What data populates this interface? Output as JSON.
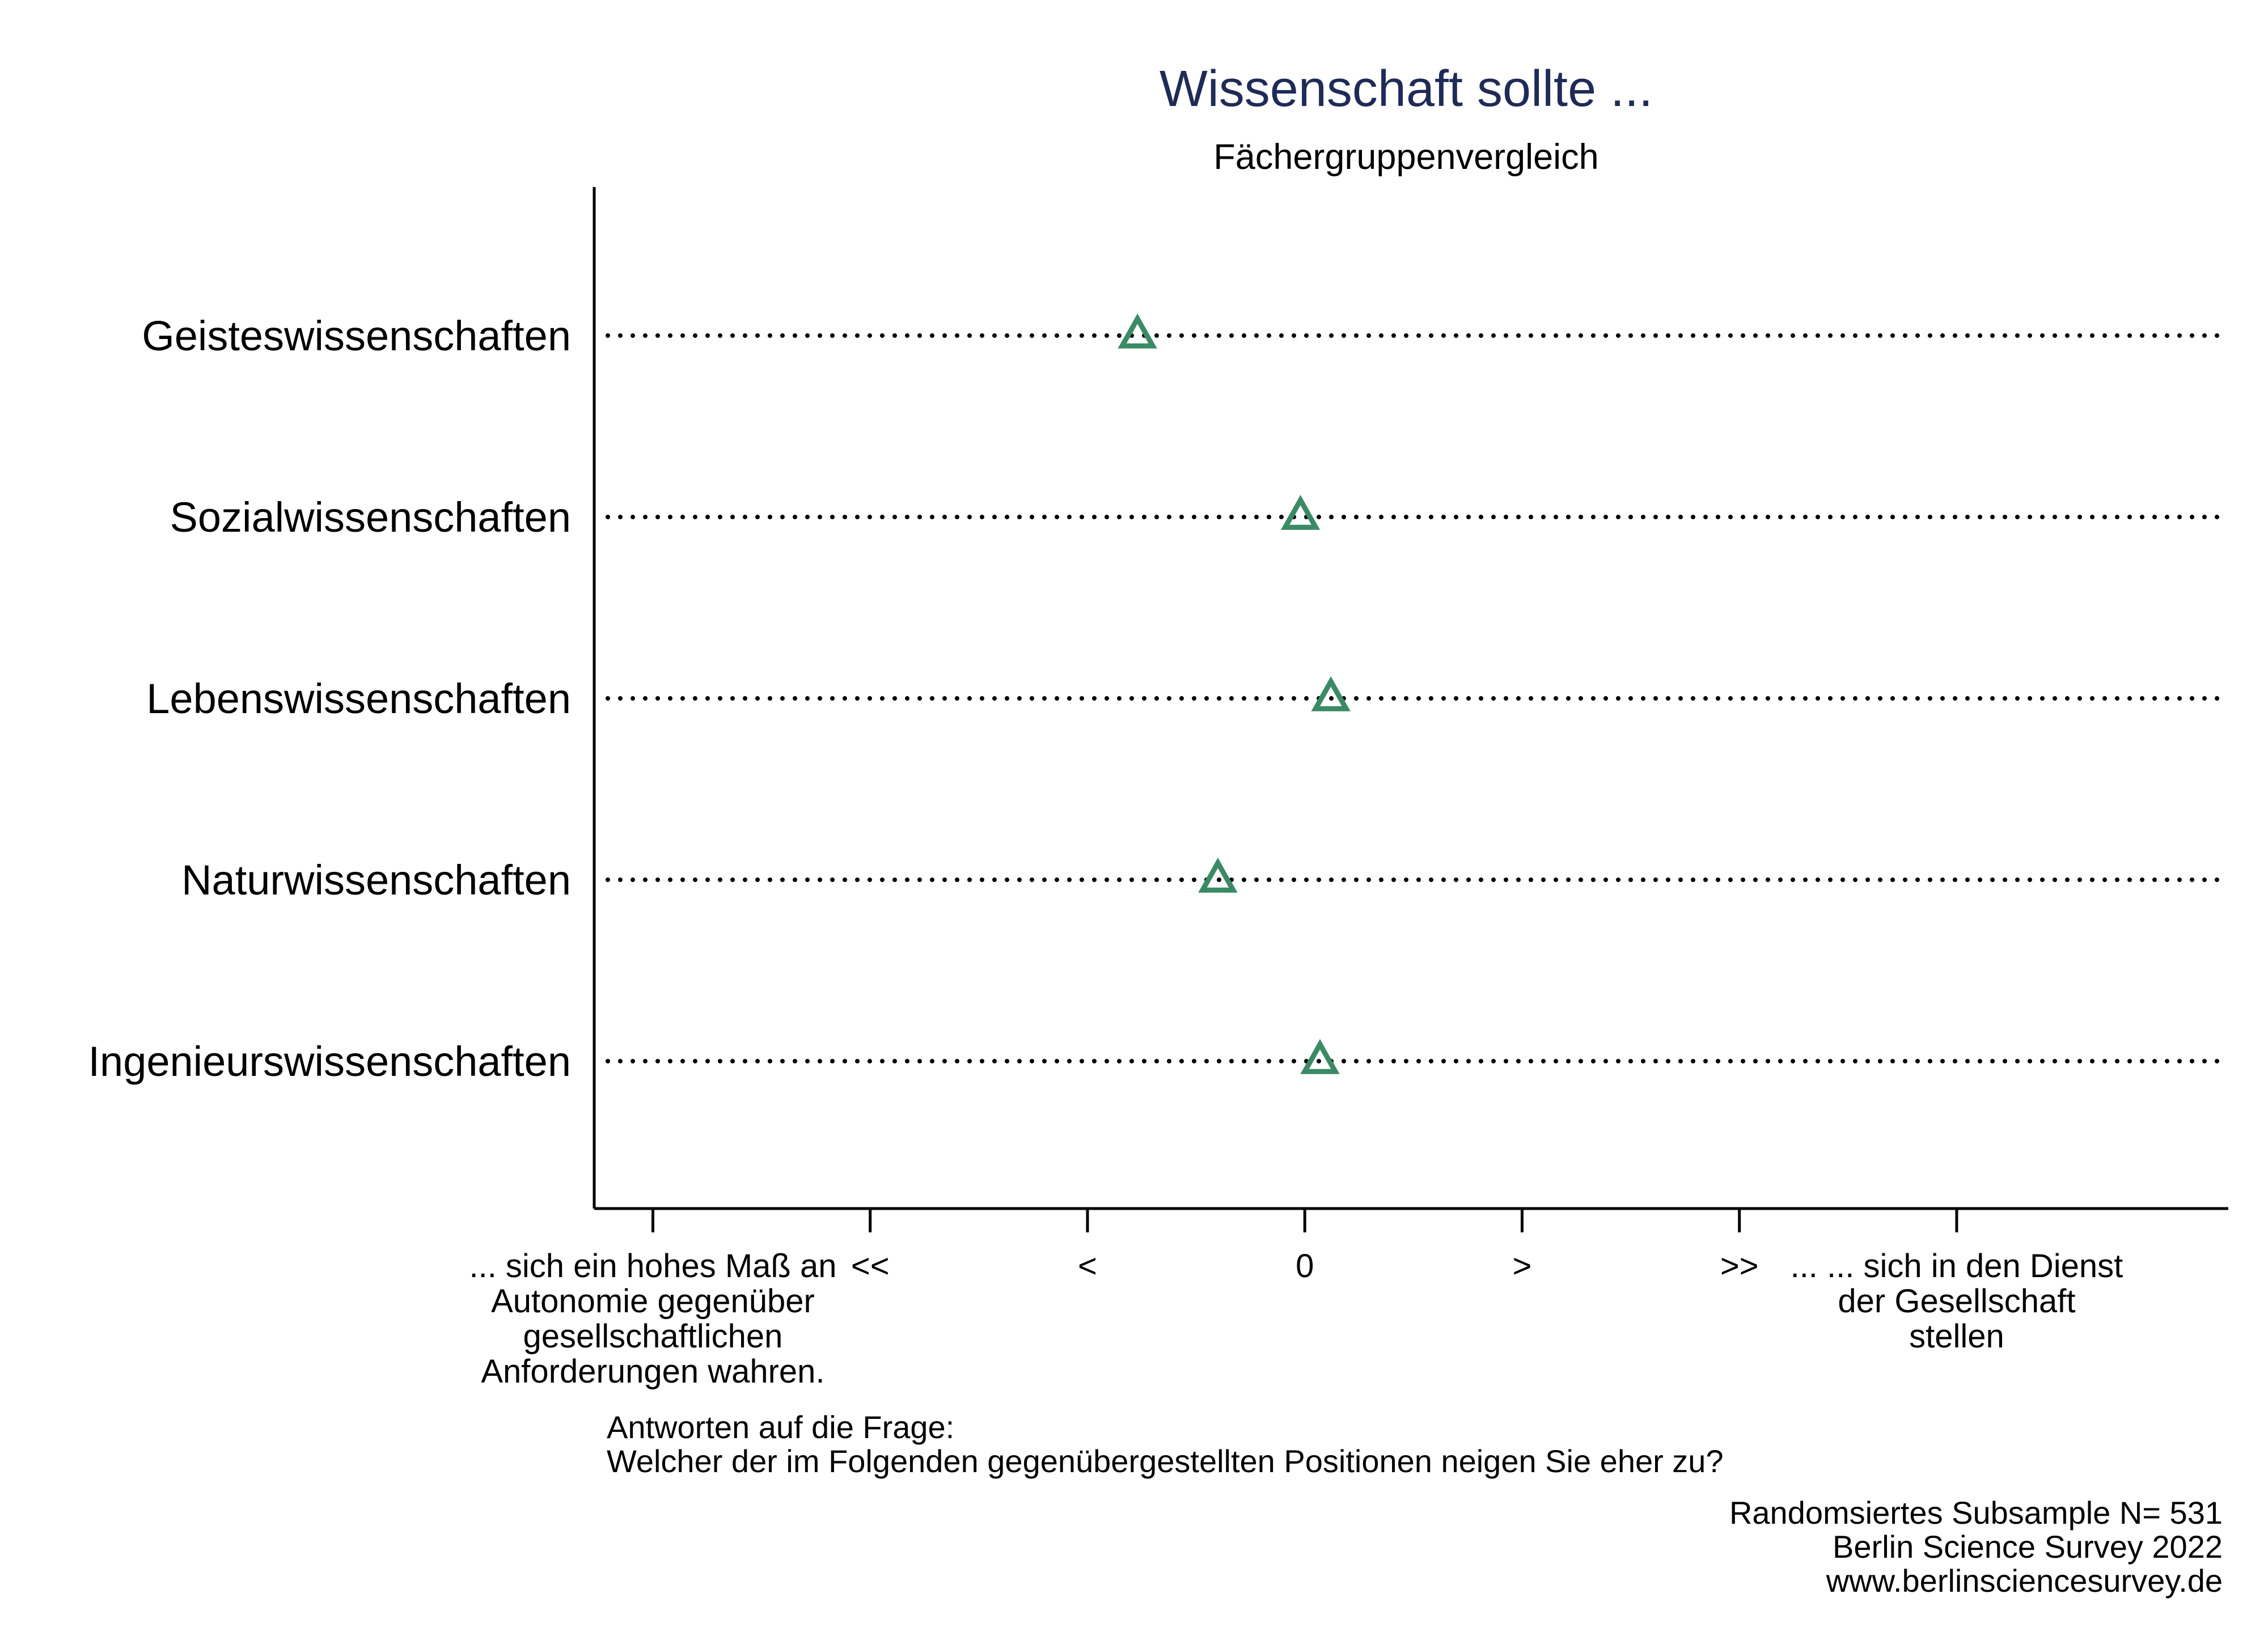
{
  "chart_data": {
    "type": "scatter",
    "title": "Wissenschaft sollte ...",
    "subtitle": "Fächergruppenvergleich",
    "categories": [
      "Geisteswissenschaften",
      "Sozialwissenschaften",
      "Lebenswissenschaften",
      "Naturwissenschaften",
      "Ingenieurswissenschaften"
    ],
    "values": [
      -0.77,
      -0.02,
      0.12,
      -0.4,
      0.07
    ],
    "x_ticks": [
      {
        "value": -3,
        "label": ""
      },
      {
        "value": -2,
        "label": "<<"
      },
      {
        "value": -1,
        "label": "<"
      },
      {
        "value": 0,
        "label": "0"
      },
      {
        "value": 1,
        "label": ">"
      },
      {
        "value": 2,
        "label": ">>"
      },
      {
        "value": 3,
        "label": ""
      }
    ],
    "xlim": [
      -3.27,
      4.25
    ],
    "left_pole_label": [
      "... sich ein hohes Maß an",
      "Autonomie gegenüber",
      "gesellschaftlichen",
      "Anforderungen wahren."
    ],
    "right_pole_label": [
      "... ... sich in den Dienst",
      "der Gesellschaft",
      "stellen"
    ],
    "question_note": [
      "Antworten auf die Frage:",
      "Welcher der im Folgenden gegenübergestellten Positionen neigen Sie eher zu?"
    ],
    "source_note": [
      "Randomsiertes Subsample N= 531",
      "Berlin Science Survey 2022",
      "www.berlinsciencesurvey.de"
    ],
    "colors": {
      "marker": "#3b8a66",
      "title": "#1f2b57",
      "axis": "#000000",
      "grid": "#000000"
    },
    "marker_shape": "triangle-outline",
    "grid": "dotted-horizontal"
  }
}
